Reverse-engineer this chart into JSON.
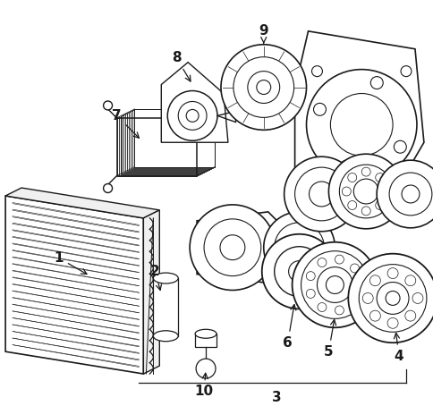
{
  "bg_color": "#ffffff",
  "line_color": "#1a1a1a",
  "figsize": [
    4.85,
    4.54
  ],
  "dpi": 100,
  "lw": 0.9
}
